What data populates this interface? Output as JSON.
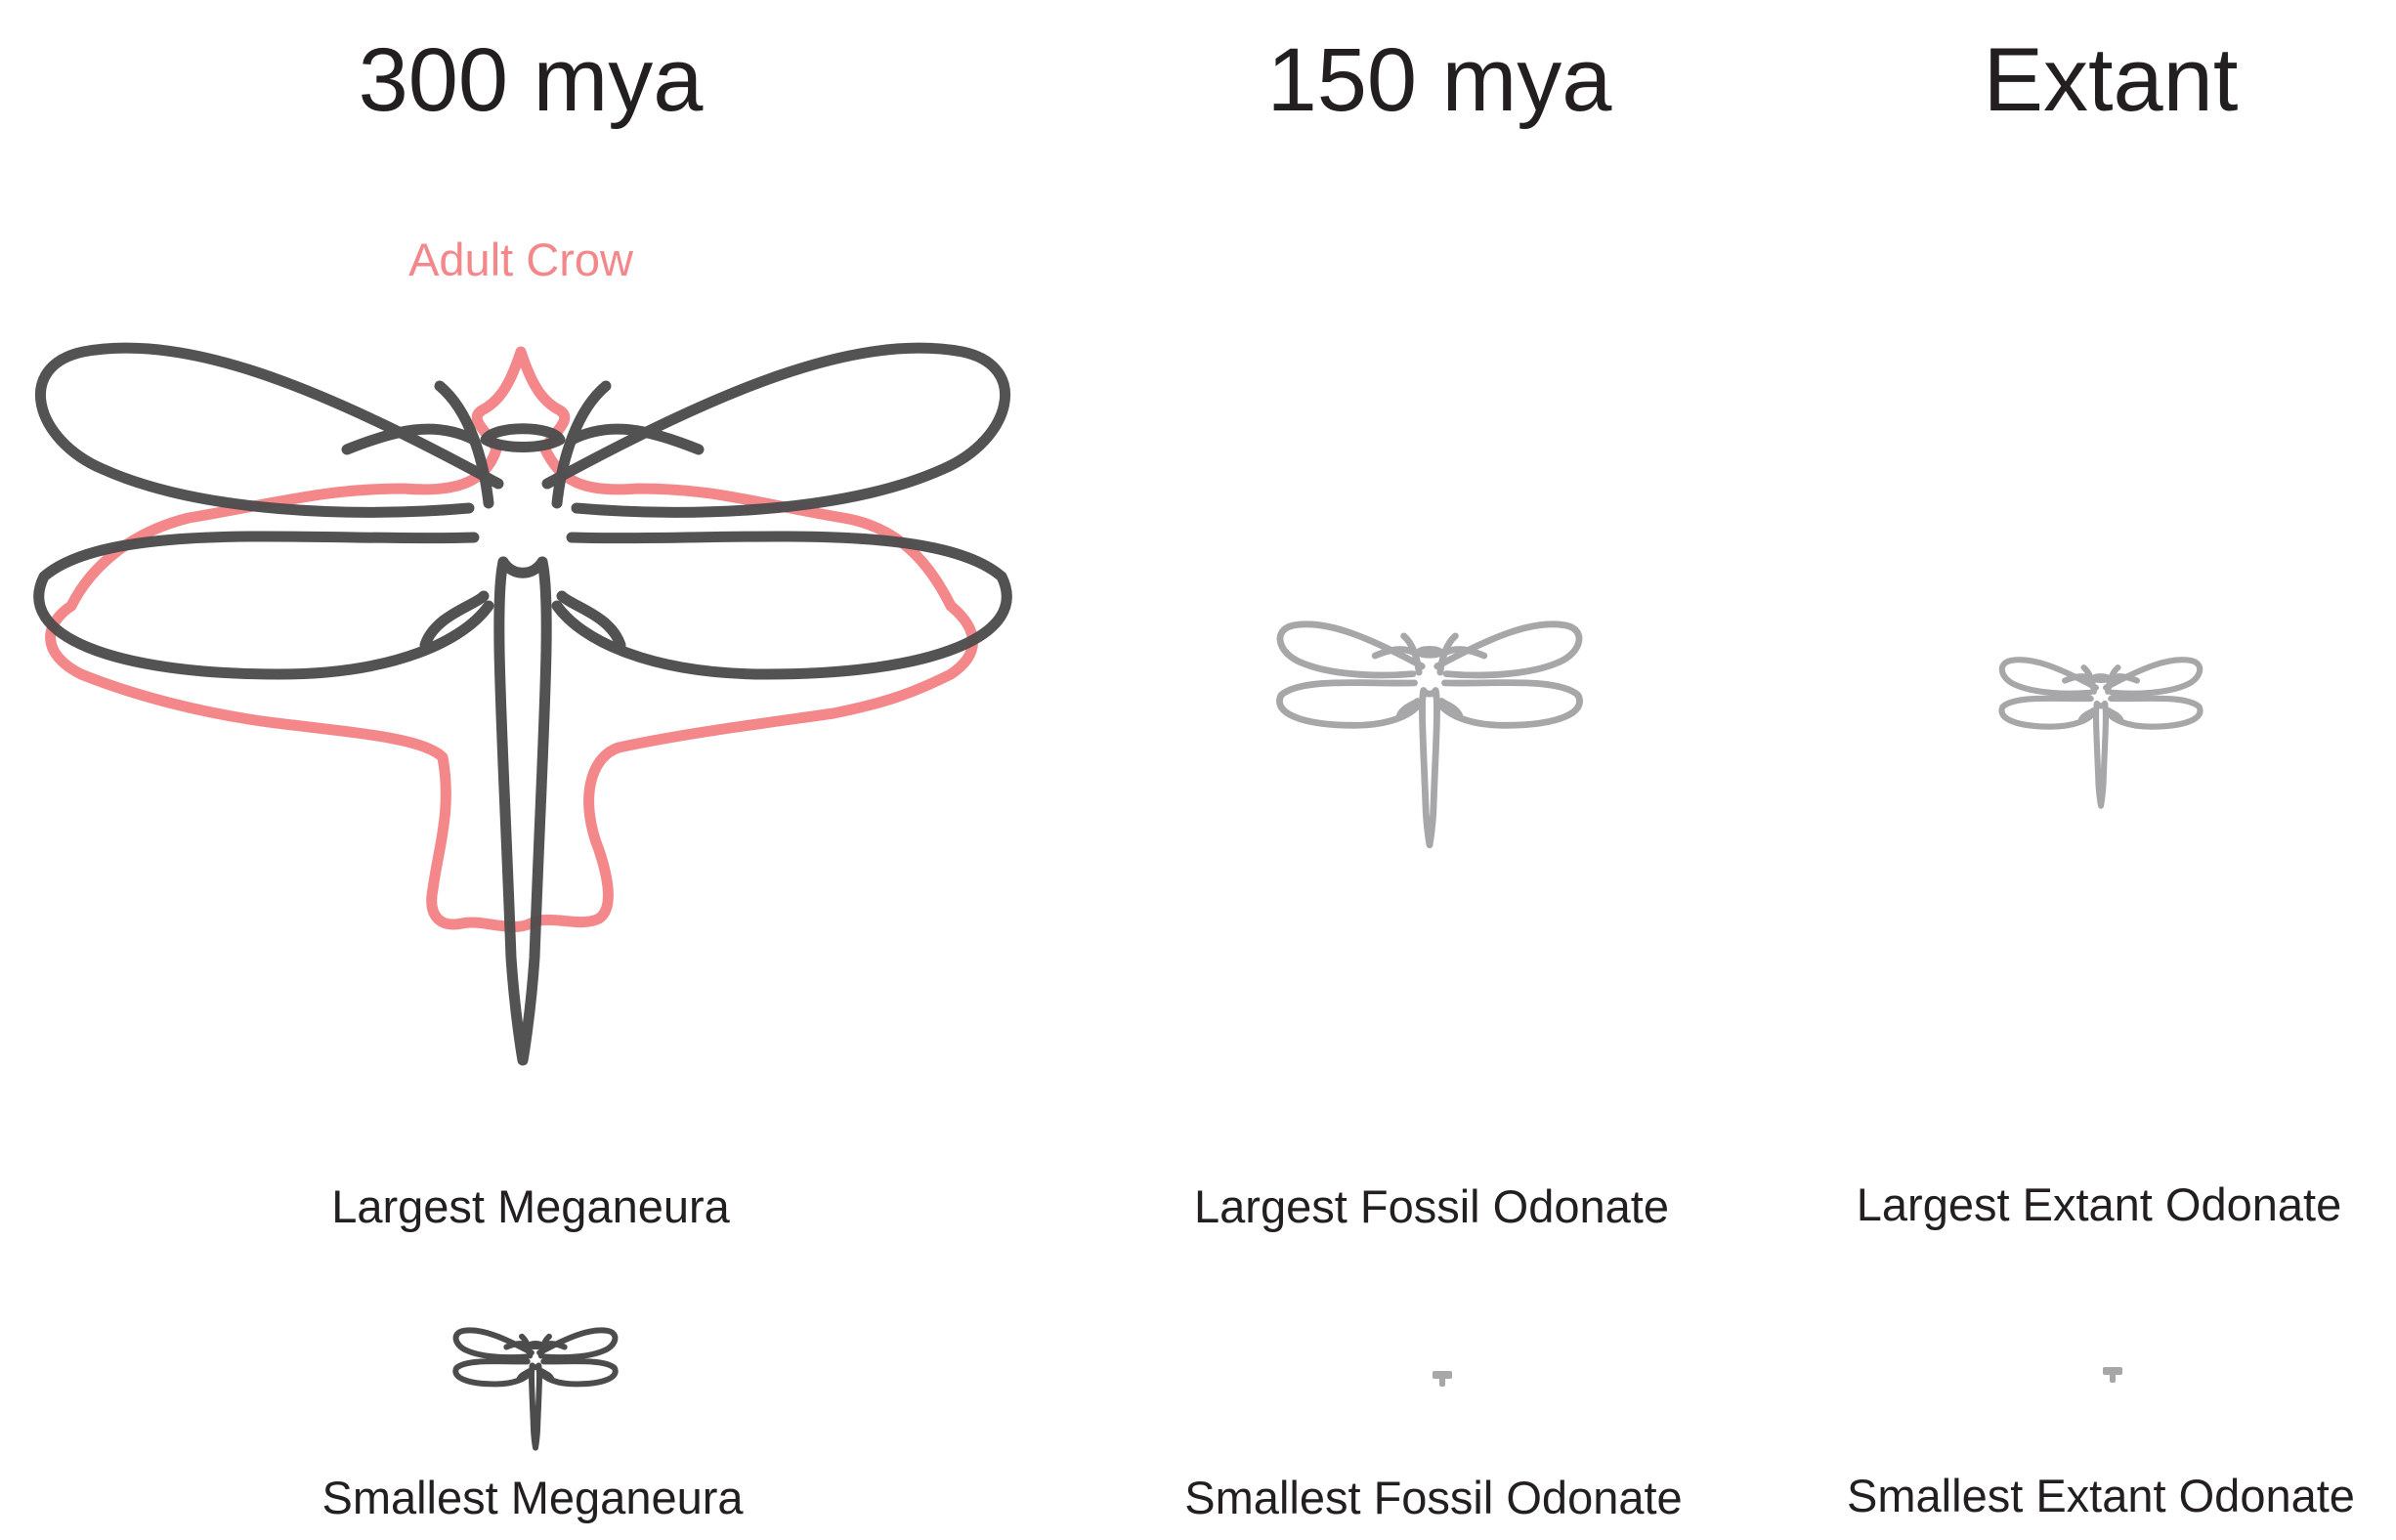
{
  "columns": [
    {
      "heading": "300 mya",
      "largest_caption": "Largest Meganeura",
      "smallest_caption": "Smallest Meganeura"
    },
    {
      "heading": "150 mya",
      "largest_caption": "Largest Fossil Odonate",
      "smallest_caption": "Smallest Fossil Odonate"
    },
    {
      "heading": "Extant",
      "largest_caption": "Largest Extant Odonate",
      "smallest_caption": "Smallest Extant Odonate"
    }
  ],
  "crow_label": "Adult Crow",
  "colors": {
    "text": "#231f20",
    "crow": "#f4878a",
    "meganeura_outline": "#4d4c4d",
    "gray_outline": "#a7a7a9"
  },
  "icons": [
    "crow-silhouette-icon",
    "dragonfly-outline-icon"
  ]
}
